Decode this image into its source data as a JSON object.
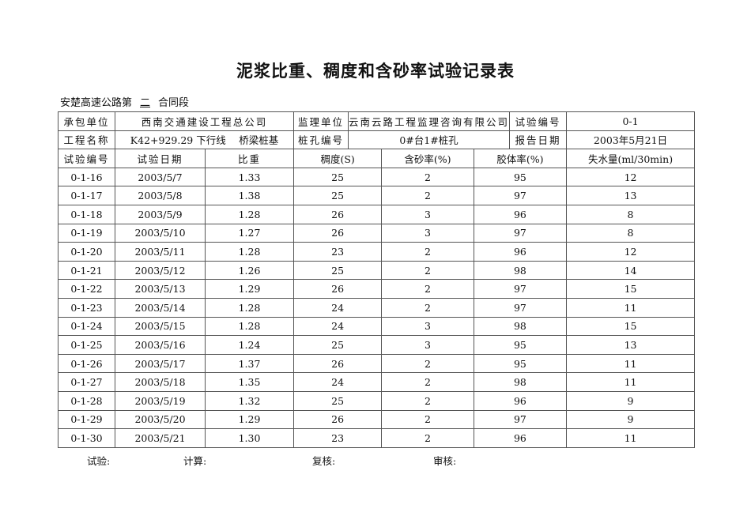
{
  "title": "泥浆比重、稠度和含砂率试验记录表",
  "section": {
    "prefix": "安楚高速公路第",
    "number": "二",
    "suffix": "合同段"
  },
  "info": {
    "contractor_label": "承包单位",
    "contractor": "西南交通建设工程总公司",
    "supervisor_label": "监理单位",
    "supervisor": "云南云路工程监理咨询有限公司",
    "test_no_label": "试验编号",
    "test_no": "0-1",
    "project_label": "工程名称",
    "project": "K42+929.29 下行线　 桥梁桩基",
    "pile_label": "桩孔编号",
    "pile": "0#台1#桩孔",
    "report_date_label": "报告日期",
    "report_date": "2003年5月21日"
  },
  "columns": [
    "试验编号",
    "试验日期",
    "比重",
    "稠度(S)",
    "含砂率(%)",
    "胶体率(%)",
    "失水量(ml/30min)"
  ],
  "rows": [
    [
      "0-1-16",
      "2003/5/7",
      "1.33",
      "25",
      "2",
      "95",
      "12"
    ],
    [
      "0-1-17",
      "2003/5/8",
      "1.38",
      "25",
      "2",
      "97",
      "13"
    ],
    [
      "0-1-18",
      "2003/5/9",
      "1.28",
      "26",
      "3",
      "96",
      "8"
    ],
    [
      "0-1-19",
      "2003/5/10",
      "1.27",
      "26",
      "3",
      "97",
      "8"
    ],
    [
      "0-1-20",
      "2003/5/11",
      "1.28",
      "23",
      "2",
      "96",
      "12"
    ],
    [
      "0-1-21",
      "2003/5/12",
      "1.26",
      "25",
      "2",
      "98",
      "14"
    ],
    [
      "0-1-22",
      "2003/5/13",
      "1.29",
      "26",
      "2",
      "97",
      "15"
    ],
    [
      "0-1-23",
      "2003/5/14",
      "1.28",
      "24",
      "2",
      "97",
      "11"
    ],
    [
      "0-1-24",
      "2003/5/15",
      "1.28",
      "24",
      "3",
      "98",
      "15"
    ],
    [
      "0-1-25",
      "2003/5/16",
      "1.24",
      "25",
      "3",
      "95",
      "13"
    ],
    [
      "0-1-26",
      "2003/5/17",
      "1.37",
      "26",
      "2",
      "95",
      "11"
    ],
    [
      "0-1-27",
      "2003/5/18",
      "1.35",
      "24",
      "2",
      "98",
      "11"
    ],
    [
      "0-1-28",
      "2003/5/19",
      "1.32",
      "25",
      "2",
      "96",
      "9"
    ],
    [
      "0-1-29",
      "2003/5/20",
      "1.29",
      "26",
      "2",
      "97",
      "9"
    ],
    [
      "0-1-30",
      "2003/5/21",
      "1.30",
      "23",
      "2",
      "96",
      "11"
    ]
  ],
  "footer": {
    "test": "试验:",
    "calc": "计算:",
    "review": "复核:",
    "audit": "审核:"
  }
}
